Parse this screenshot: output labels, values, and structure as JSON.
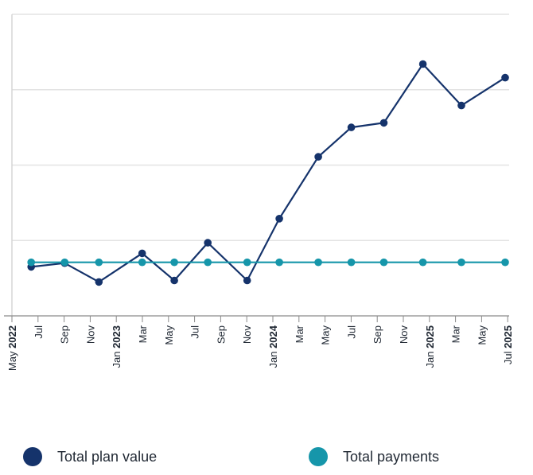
{
  "chart_data": {
    "type": "line",
    "title": "",
    "xlabel": "",
    "ylabel": "",
    "ytick_labels_shown": false,
    "grid": "horizontal",
    "legend_position": "bottom",
    "x_ticks": [
      {
        "label": "May",
        "year": "2022"
      },
      {
        "label": "Jul",
        "year": ""
      },
      {
        "label": "Sep",
        "year": ""
      },
      {
        "label": "Nov",
        "year": ""
      },
      {
        "label": "Jan",
        "year": "2023"
      },
      {
        "label": "Mar",
        "year": ""
      },
      {
        "label": "May",
        "year": ""
      },
      {
        "label": "Jul",
        "year": ""
      },
      {
        "label": "Sep",
        "year": ""
      },
      {
        "label": "Nov",
        "year": ""
      },
      {
        "label": "Jan",
        "year": "2024"
      },
      {
        "label": "Mar",
        "year": ""
      },
      {
        "label": "May",
        "year": ""
      },
      {
        "label": "Jul",
        "year": ""
      },
      {
        "label": "Sep",
        "year": ""
      },
      {
        "label": "Nov",
        "year": ""
      },
      {
        "label": "Jan",
        "year": "2025"
      },
      {
        "label": "Mar",
        "year": ""
      },
      {
        "label": "May",
        "year": ""
      },
      {
        "label": "Jul",
        "year": "2025"
      }
    ],
    "x": [
      "2022-06-15",
      "2022-09-01",
      "2022-11-20",
      "2023-03-01",
      "2023-05-15",
      "2023-08-01",
      "2023-11-01",
      "2024-01-15",
      "2024-04-15",
      "2024-07-01",
      "2024-09-15",
      "2024-12-15",
      "2025-03-15",
      "2025-06-25"
    ],
    "ylim": [
      0,
      4
    ],
    "series": [
      {
        "name": "Total plan value",
        "color": "#15336b",
        "values": [
          0.65,
          0.7,
          0.45,
          0.83,
          0.47,
          0.97,
          0.47,
          1.29,
          2.11,
          2.5,
          2.56,
          3.34,
          2.79,
          3.16
        ]
      },
      {
        "name": "Total payments",
        "color": "#1696aa",
        "values": [
          0.71,
          0.71,
          0.71,
          0.71,
          0.71,
          0.71,
          0.71,
          0.71,
          0.71,
          0.71,
          0.71,
          0.71,
          0.71,
          0.71
        ]
      }
    ]
  }
}
